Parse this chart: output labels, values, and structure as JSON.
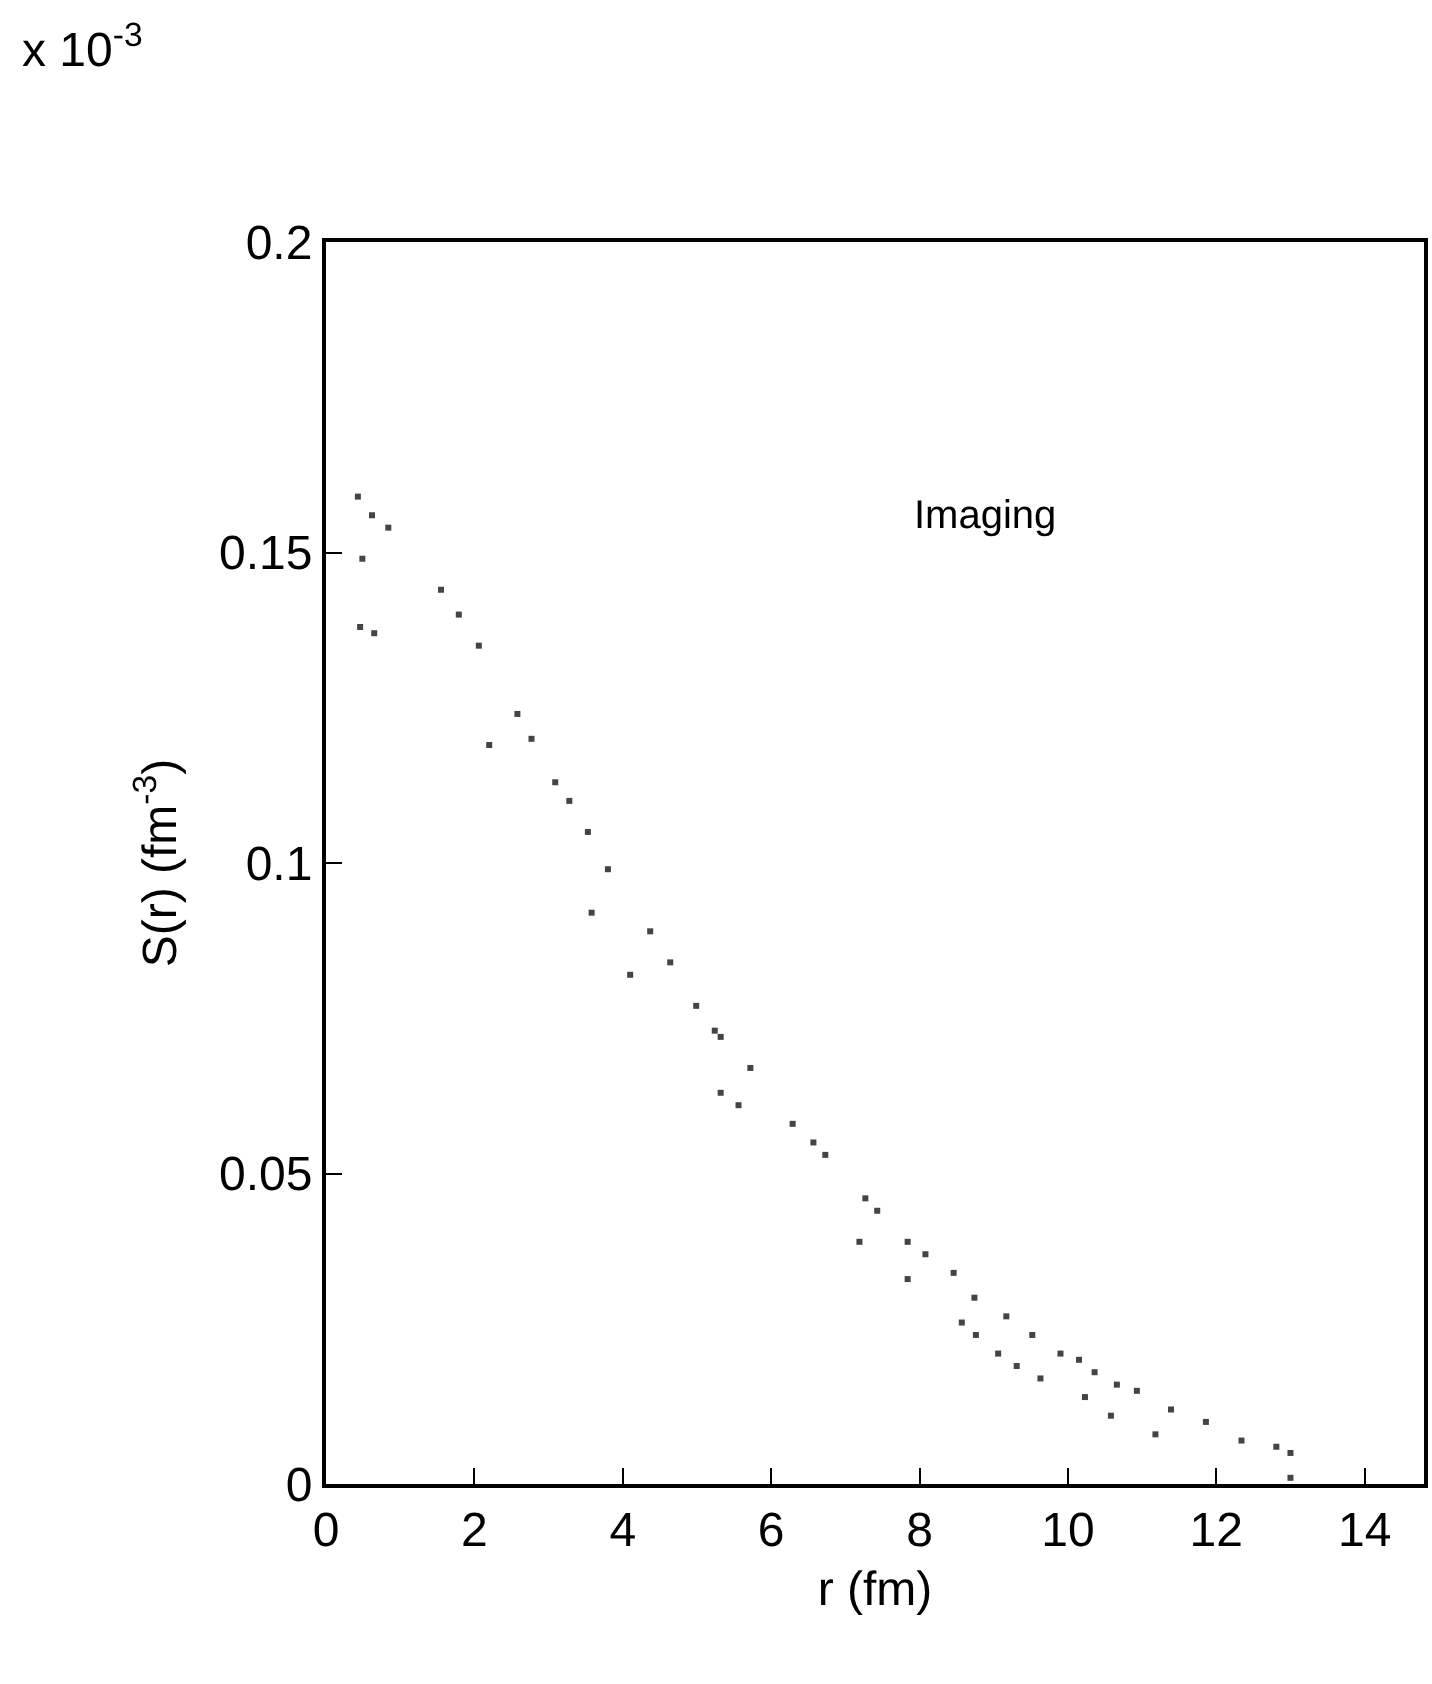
{
  "chart_data": {
    "type": "scatter",
    "xlabel": "r (fm)",
    "ylabel": "S(r) (fm$^{-3}$)",
    "annotations": [
      "x 10$^{-3}$",
      "Imaging"
    ],
    "series": [
      {
        "color": "#444444",
        "x": [
          0.43,
          0.62,
          0.84,
          0.49,
          1.55,
          1.79,
          2.06,
          2.58,
          2.77,
          3.09,
          3.28,
          3.53,
          3.8,
          4.37,
          4.64,
          4.99,
          5.24,
          0.46,
          0.65,
          2.2,
          3.58,
          4.1,
          5.32,
          5.72,
          5.32,
          5.56,
          6.29,
          6.57,
          6.73,
          7.27,
          7.43,
          7.19,
          7.84,
          8.08,
          8.46,
          7.84,
          8.74,
          8.57,
          9.17,
          9.52,
          8.76,
          9.06,
          9.31,
          9.9,
          10.15,
          10.36,
          10.66,
          9.63,
          10.23,
          10.93,
          10.58,
          11.18,
          11.39,
          11.86,
          12.34,
          12.81,
          13.0,
          13.0
        ],
        "values": [
          0.159,
          0.156,
          0.154,
          0.149,
          0.144,
          0.14,
          0.135,
          0.124,
          0.12,
          0.113,
          0.11,
          0.105,
          0.099,
          0.089,
          0.084,
          0.077,
          0.073,
          0.138,
          0.137,
          0.119,
          0.092,
          0.082,
          0.072,
          0.067,
          0.063,
          0.061,
          0.058,
          0.055,
          0.053,
          0.046,
          0.044,
          0.039,
          0.039,
          0.037,
          0.034,
          0.033,
          0.03,
          0.026,
          0.027,
          0.024,
          0.024,
          0.021,
          0.019,
          0.021,
          0.02,
          0.018,
          0.016,
          0.017,
          0.014,
          0.015,
          0.011,
          0.008,
          0.012,
          0.01,
          0.007,
          0.006,
          0.005,
          0.001
        ]
      }
    ],
    "marker": "square",
    "xlim": [
      0,
      14.8
    ],
    "xticks": [
      0,
      2,
      4,
      6,
      8,
      10,
      12,
      14
    ],
    "ylim": [
      0,
      0.2
    ],
    "yticks": [
      0,
      0.05,
      0.1,
      0.15,
      0.2
    ]
  }
}
